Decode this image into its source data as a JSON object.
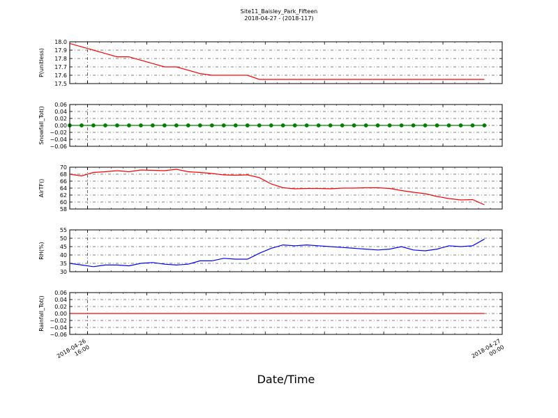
{
  "figure": {
    "title_line1": "Site11_Baisley_Park_Fifteen",
    "title_line2": "2018-04-27 - (2018-117)",
    "xlabel": "Date/Time",
    "x_ticks": [
      {
        "t": 1.5,
        "line1": "2018-04-26",
        "line2": "16:00"
      },
      {
        "t": 36.5,
        "line1": "2018-04-27",
        "line2": "00:00"
      }
    ]
  },
  "chart_data": [
    {
      "type": "line",
      "ylabel": "P(unitless)",
      "ylim": [
        17.5,
        18.0
      ],
      "yticks": [
        "17.5",
        "17.6",
        "17.7",
        "17.8",
        "17.9",
        "18.0"
      ],
      "color": "#ff0000",
      "markers": false,
      "x": [
        0,
        1,
        2,
        3,
        4,
        5,
        6,
        7,
        8,
        9,
        10,
        11,
        12,
        13,
        14,
        15,
        16,
        17,
        18,
        19,
        20,
        21,
        22,
        23,
        24,
        25,
        26,
        27,
        28,
        29,
        30,
        31,
        32,
        33,
        34,
        35
      ],
      "values": [
        17.98,
        17.94,
        17.9,
        17.86,
        17.82,
        17.82,
        17.78,
        17.74,
        17.7,
        17.7,
        17.66,
        17.62,
        17.6,
        17.6,
        17.6,
        17.6,
        17.55,
        17.55,
        17.55,
        17.55,
        17.55,
        17.55,
        17.55,
        17.55,
        17.55,
        17.55,
        17.55,
        17.55,
        17.55,
        17.55,
        17.55,
        17.55,
        17.55,
        17.55,
        17.55,
        17.55
      ]
    },
    {
      "type": "line",
      "ylabel": "Snowfall_Tot()",
      "ylim": [
        -0.06,
        0.06
      ],
      "yticks": [
        "−0.06",
        "−0.04",
        "−0.02",
        "0.00",
        "0.02",
        "0.04",
        "0.06"
      ],
      "color": "#007f00",
      "markers": true,
      "x": [
        0,
        1,
        2,
        3,
        4,
        5,
        6,
        7,
        8,
        9,
        10,
        11,
        12,
        13,
        14,
        15,
        16,
        17,
        18,
        19,
        20,
        21,
        22,
        23,
        24,
        25,
        26,
        27,
        28,
        29,
        30,
        31,
        32,
        33,
        34,
        35
      ],
      "values": [
        0,
        0,
        0,
        0,
        0,
        0,
        0,
        0,
        0,
        0,
        0,
        0,
        0,
        0,
        0,
        0,
        0,
        0,
        0,
        0,
        0,
        0,
        0,
        0,
        0,
        0,
        0,
        0,
        0,
        0,
        0,
        0,
        0,
        0,
        0,
        0
      ]
    },
    {
      "type": "line",
      "ylabel": "AirTF()",
      "ylim": [
        58,
        70
      ],
      "yticks": [
        "58",
        "60",
        "62",
        "64",
        "66",
        "68",
        "70"
      ],
      "color": "#ff0000",
      "markers": false,
      "x": [
        0,
        1,
        2,
        3,
        4,
        5,
        6,
        7,
        8,
        9,
        10,
        11,
        12,
        13,
        14,
        15,
        16,
        17,
        18,
        19,
        20,
        21,
        22,
        23,
        24,
        25,
        26,
        27,
        28,
        29,
        30,
        31,
        32,
        33,
        34,
        35
      ],
      "values": [
        68.0,
        67.5,
        68.5,
        68.7,
        69.0,
        68.7,
        69.2,
        69.1,
        69.0,
        69.4,
        68.7,
        68.5,
        68.2,
        67.8,
        67.7,
        67.8,
        67.0,
        65.2,
        64.1,
        63.8,
        63.9,
        63.9,
        63.8,
        64.0,
        64.0,
        64.1,
        64.1,
        63.9,
        63.3,
        62.8,
        62.4,
        61.6,
        61.0,
        60.6,
        60.7,
        59.2
      ]
    },
    {
      "type": "line",
      "ylabel": "RH(%)",
      "ylim": [
        30,
        55
      ],
      "yticks": [
        "30",
        "35",
        "40",
        "45",
        "50",
        "55"
      ],
      "color": "#0000ff",
      "markers": false,
      "x": [
        0,
        1,
        2,
        3,
        4,
        5,
        6,
        7,
        8,
        9,
        10,
        11,
        12,
        13,
        14,
        15,
        16,
        17,
        18,
        19,
        20,
        21,
        22,
        23,
        24,
        25,
        26,
        27,
        28,
        29,
        30,
        31,
        32,
        33,
        34,
        35
      ],
      "values": [
        35.0,
        34.0,
        33.0,
        34.0,
        34.0,
        33.5,
        35.0,
        35.5,
        34.5,
        34.0,
        34.5,
        36.5,
        36.5,
        38.0,
        37.5,
        37.5,
        41.0,
        44.0,
        46.0,
        45.5,
        46.0,
        45.5,
        45.0,
        44.5,
        44.0,
        43.5,
        43.0,
        43.5,
        45.0,
        43.0,
        42.5,
        43.5,
        45.5,
        45.0,
        45.5,
        49.5
      ]
    },
    {
      "type": "line",
      "ylabel": "Rainfall_Tot()",
      "ylim": [
        -0.06,
        0.06
      ],
      "yticks": [
        "−0.06",
        "−0.04",
        "−0.02",
        "0.00",
        "0.02",
        "0.04",
        "0.06"
      ],
      "color": "#ff0000",
      "markers": false,
      "x": [
        0,
        1,
        2,
        3,
        4,
        5,
        6,
        7,
        8,
        9,
        10,
        11,
        12,
        13,
        14,
        15,
        16,
        17,
        18,
        19,
        20,
        21,
        22,
        23,
        24,
        25,
        26,
        27,
        28,
        29,
        30,
        31,
        32,
        33,
        34,
        35
      ],
      "values": [
        0,
        0,
        0,
        0,
        0,
        0,
        0,
        0,
        0,
        0,
        0,
        0,
        0,
        0,
        0,
        0,
        0,
        0,
        0,
        0,
        0,
        0,
        0,
        0,
        0,
        0,
        0,
        0,
        0,
        0,
        0,
        0,
        0,
        0,
        0,
        0
      ]
    }
  ]
}
